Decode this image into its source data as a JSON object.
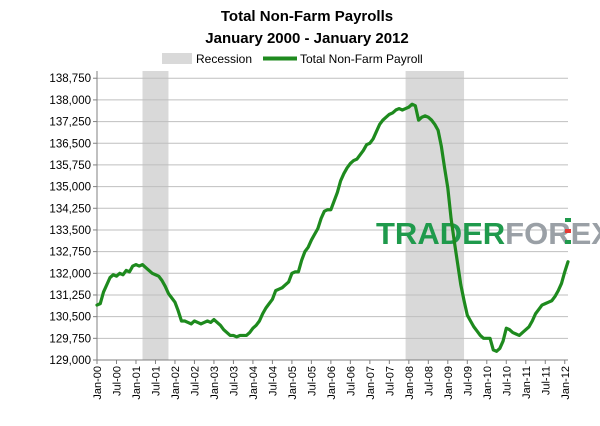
{
  "chart_data": {
    "type": "line",
    "title": "Total Non-Farm Payrolls",
    "subtitle": "January 2000 - January 2012",
    "xlabel": "",
    "ylabel": "",
    "ylim": [
      129000,
      139000
    ],
    "yticks": [
      129000,
      129750,
      130500,
      131250,
      132000,
      132750,
      133500,
      134250,
      135000,
      135750,
      136500,
      137250,
      138000,
      138750
    ],
    "ytick_labels": [
      "129,000",
      "129,750",
      "130,500",
      "131,250",
      "132,000",
      "132,750",
      "133,500",
      "134,250",
      "135,000",
      "135,750",
      "136,500",
      "137,250",
      "138,000",
      "138,750"
    ],
    "xticks": [
      "Jan-00",
      "Jul-00",
      "Jan-01",
      "Jul-01",
      "Jan-02",
      "Jul-02",
      "Jan-03",
      "Jul-03",
      "Jan-04",
      "Jul-04",
      "Jan-05",
      "Jul-05",
      "Jan-06",
      "Jul-06",
      "Jan-07",
      "Jul-07",
      "Jan-08",
      "Jul-08",
      "Jan-09",
      "Jul-09",
      "Jan-10",
      "Jul-10",
      "Jan-11",
      "Jul-11",
      "Jan-12"
    ],
    "grid": true,
    "legend": "top",
    "legend_entries": [
      "Recession",
      "Total Non-Farm Payroll"
    ],
    "recessions": [
      [
        "Mar-01",
        "Nov-01"
      ],
      [
        "Dec-07",
        "Jun-09"
      ]
    ],
    "series": [
      {
        "name": "Total Non-Farm Payroll",
        "color": "#1e8a1e",
        "points": [
          [
            "Jan-00",
            130900
          ],
          [
            "Feb-00",
            130950
          ],
          [
            "Mar-00",
            131350
          ],
          [
            "Apr-00",
            131600
          ],
          [
            "May-00",
            131850
          ],
          [
            "Jun-00",
            131950
          ],
          [
            "Jul-00",
            131900
          ],
          [
            "Aug-00",
            132000
          ],
          [
            "Sep-00",
            131950
          ],
          [
            "Oct-00",
            132100
          ],
          [
            "Nov-00",
            132050
          ],
          [
            "Dec-00",
            132250
          ],
          [
            "Jan-01",
            132300
          ],
          [
            "Feb-01",
            132250
          ],
          [
            "Mar-01",
            132300
          ],
          [
            "Apr-01",
            132200
          ],
          [
            "May-01",
            132100
          ],
          [
            "Jun-01",
            132000
          ],
          [
            "Jul-01",
            131950
          ],
          [
            "Aug-01",
            131900
          ],
          [
            "Sep-01",
            131750
          ],
          [
            "Oct-01",
            131550
          ],
          [
            "Nov-01",
            131300
          ],
          [
            "Dec-01",
            131150
          ],
          [
            "Jan-02",
            131000
          ],
          [
            "Feb-02",
            130700
          ],
          [
            "Mar-02",
            130350
          ],
          [
            "Apr-02",
            130350
          ],
          [
            "May-02",
            130300
          ],
          [
            "Jun-02",
            130250
          ],
          [
            "Jul-02",
            130350
          ],
          [
            "Aug-02",
            130300
          ],
          [
            "Sep-02",
            130250
          ],
          [
            "Oct-02",
            130300
          ],
          [
            "Nov-02",
            130350
          ],
          [
            "Dec-02",
            130300
          ],
          [
            "Jan-03",
            130400
          ],
          [
            "Feb-03",
            130300
          ],
          [
            "Mar-03",
            130200
          ],
          [
            "Apr-03",
            130050
          ],
          [
            "May-03",
            129950
          ],
          [
            "Jun-03",
            129850
          ],
          [
            "Jul-03",
            129850
          ],
          [
            "Aug-03",
            129800
          ],
          [
            "Sep-03",
            129850
          ],
          [
            "Oct-03",
            129850
          ],
          [
            "Nov-03",
            129850
          ],
          [
            "Dec-03",
            129950
          ],
          [
            "Jan-04",
            130100
          ],
          [
            "Feb-04",
            130200
          ],
          [
            "Mar-04",
            130350
          ],
          [
            "Apr-04",
            130600
          ],
          [
            "May-04",
            130800
          ],
          [
            "Jun-04",
            130950
          ],
          [
            "Jul-04",
            131100
          ],
          [
            "Aug-04",
            131400
          ],
          [
            "Sep-04",
            131450
          ],
          [
            "Oct-04",
            131500
          ],
          [
            "Nov-04",
            131600
          ],
          [
            "Dec-04",
            131700
          ],
          [
            "Jan-05",
            132000
          ],
          [
            "Feb-05",
            132050
          ],
          [
            "Mar-05",
            132050
          ],
          [
            "Apr-05",
            132450
          ],
          [
            "May-05",
            132750
          ],
          [
            "Jun-05",
            132900
          ],
          [
            "Jul-05",
            133150
          ],
          [
            "Aug-05",
            133350
          ],
          [
            "Sep-05",
            133550
          ],
          [
            "Oct-05",
            133900
          ],
          [
            "Nov-05",
            134150
          ],
          [
            "Dec-05",
            134200
          ],
          [
            "Jan-06",
            134200
          ],
          [
            "Feb-06",
            134500
          ],
          [
            "Mar-06",
            134800
          ],
          [
            "Apr-06",
            135200
          ],
          [
            "May-06",
            135450
          ],
          [
            "Jun-06",
            135650
          ],
          [
            "Jul-06",
            135800
          ],
          [
            "Aug-06",
            135900
          ],
          [
            "Sep-06",
            135950
          ],
          [
            "Oct-06",
            136100
          ],
          [
            "Nov-06",
            136250
          ],
          [
            "Dec-06",
            136450
          ],
          [
            "Jan-07",
            136500
          ],
          [
            "Feb-07",
            136650
          ],
          [
            "Mar-07",
            136900
          ],
          [
            "Apr-07",
            137150
          ],
          [
            "May-07",
            137300
          ],
          [
            "Jun-07",
            137400
          ],
          [
            "Jul-07",
            137500
          ],
          [
            "Aug-07",
            137550
          ],
          [
            "Sep-07",
            137650
          ],
          [
            "Oct-07",
            137700
          ],
          [
            "Nov-07",
            137650
          ],
          [
            "Dec-07",
            137700
          ],
          [
            "Jan-08",
            137750
          ],
          [
            "Feb-08",
            137850
          ],
          [
            "Mar-08",
            137800
          ],
          [
            "Apr-08",
            137300
          ],
          [
            "May-08",
            137400
          ],
          [
            "Jun-08",
            137450
          ],
          [
            "Jul-08",
            137400
          ],
          [
            "Aug-08",
            137300
          ],
          [
            "Sep-08",
            137150
          ],
          [
            "Oct-08",
            136950
          ],
          [
            "Nov-08",
            136400
          ],
          [
            "Dec-08",
            135650
          ],
          [
            "Jan-09",
            134950
          ],
          [
            "Feb-09",
            133900
          ],
          [
            "Mar-09",
            133100
          ],
          [
            "Apr-09",
            132350
          ],
          [
            "May-09",
            131600
          ],
          [
            "Jun-09",
            131050
          ],
          [
            "Jul-09",
            130550
          ],
          [
            "Aug-09",
            130350
          ],
          [
            "Sep-09",
            130150
          ],
          [
            "Oct-09",
            130000
          ],
          [
            "Nov-09",
            129850
          ],
          [
            "Dec-09",
            129750
          ],
          [
            "Jan-10",
            129750
          ],
          [
            "Feb-10",
            129750
          ],
          [
            "Mar-10",
            129350
          ],
          [
            "Apr-10",
            129300
          ],
          [
            "May-10",
            129400
          ],
          [
            "Jun-10",
            129650
          ],
          [
            "Jul-10",
            130100
          ],
          [
            "Aug-10",
            130050
          ],
          [
            "Sep-10",
            129950
          ],
          [
            "Oct-10",
            129900
          ],
          [
            "Nov-10",
            129850
          ],
          [
            "Dec-10",
            129950
          ],
          [
            "Jan-11",
            130050
          ],
          [
            "Feb-11",
            130150
          ],
          [
            "Mar-11",
            130350
          ],
          [
            "Apr-11",
            130600
          ],
          [
            "May-11",
            130750
          ],
          [
            "Jun-11",
            130900
          ],
          [
            "Jul-11",
            130950
          ],
          [
            "Aug-11",
            131000
          ],
          [
            "Sep-11",
            131050
          ],
          [
            "Oct-11",
            131200
          ],
          [
            "Nov-11",
            131400
          ],
          [
            "Dec-11",
            131650
          ],
          [
            "Jan-12",
            132050
          ],
          [
            "Feb-12",
            132400
          ]
        ]
      }
    ]
  },
  "watermark": {
    "text_a": "TRADER",
    "text_b": "FOREX",
    "color_a": "#1f9a4c",
    "color_b": "#9aa0a6"
  },
  "colors": {
    "recession": "#d9d9d9",
    "grid": "#bfbfbf",
    "axis": "#808080",
    "line": "#1e8a1e"
  }
}
